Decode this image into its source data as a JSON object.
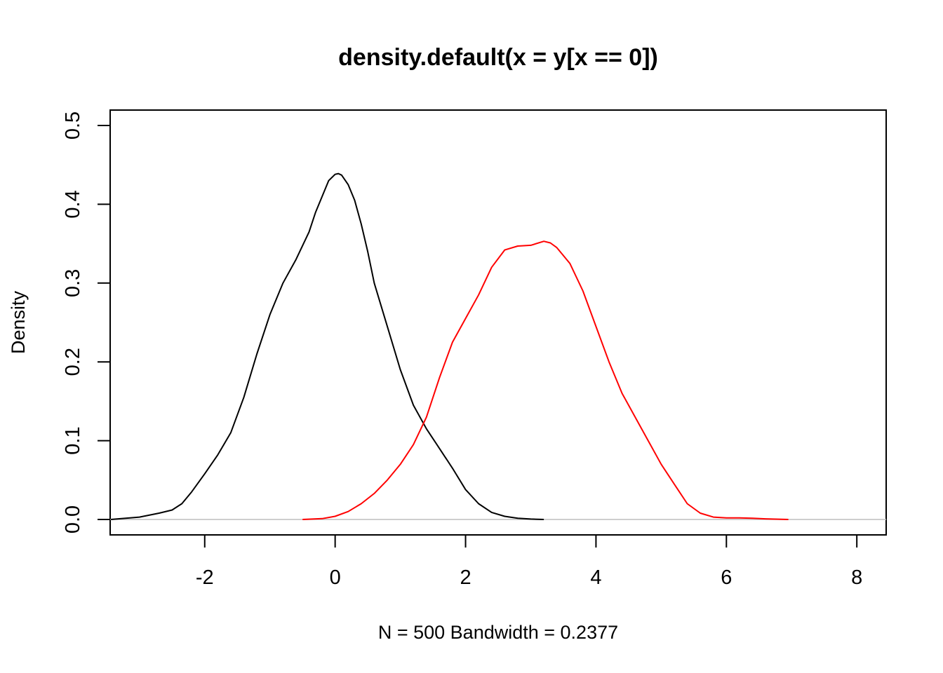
{
  "chart_data": {
    "type": "line",
    "title": "density.default(x = y[x == 0])",
    "xlabel": "N = 500   Bandwidth = 0.2377",
    "ylabel": "Density",
    "xlim": [
      -3.45,
      8.45
    ],
    "ylim": [
      -0.0196,
      0.5196
    ],
    "x_ticks": [
      -2,
      0,
      2,
      4,
      6,
      8
    ],
    "x_tick_labels": [
      "-2",
      "0",
      "2",
      "4",
      "6",
      "8"
    ],
    "y_ticks": [
      0.0,
      0.1,
      0.2,
      0.3,
      0.4,
      0.5
    ],
    "y_tick_labels": [
      "0.0",
      "0.1",
      "0.2",
      "0.3",
      "0.4",
      "0.5"
    ],
    "baseline": {
      "y": 0,
      "color": "#bebebe"
    },
    "grid": false,
    "series": [
      {
        "color": "#000000",
        "x": [
          -3.44,
          -3.0,
          -2.7,
          -2.5,
          -2.35,
          -2.2,
          -2.0,
          -1.8,
          -1.6,
          -1.4,
          -1.2,
          -1.0,
          -0.8,
          -0.6,
          -0.4,
          -0.3,
          -0.2,
          -0.1,
          0.0,
          0.05,
          0.1,
          0.2,
          0.3,
          0.4,
          0.5,
          0.6,
          0.8,
          1.0,
          1.2,
          1.4,
          1.6,
          1.8,
          2.0,
          2.2,
          2.4,
          2.6,
          2.8,
          3.0,
          3.2
        ],
        "y": [
          0.0,
          0.003,
          0.008,
          0.012,
          0.02,
          0.035,
          0.058,
          0.082,
          0.11,
          0.155,
          0.21,
          0.26,
          0.3,
          0.33,
          0.365,
          0.39,
          0.41,
          0.43,
          0.438,
          0.439,
          0.437,
          0.425,
          0.405,
          0.375,
          0.34,
          0.3,
          0.245,
          0.19,
          0.145,
          0.115,
          0.09,
          0.065,
          0.038,
          0.02,
          0.009,
          0.004,
          0.0015,
          0.0005,
          0.0
        ]
      },
      {
        "color": "#ff0000",
        "x": [
          -0.5,
          -0.2,
          0.0,
          0.2,
          0.4,
          0.6,
          0.8,
          1.0,
          1.2,
          1.4,
          1.6,
          1.8,
          2.0,
          2.2,
          2.4,
          2.6,
          2.8,
          3.0,
          3.2,
          3.3,
          3.4,
          3.6,
          3.8,
          4.0,
          4.2,
          4.4,
          4.6,
          4.8,
          5.0,
          5.2,
          5.4,
          5.6,
          5.8,
          6.0,
          6.2,
          6.4,
          6.6,
          6.8,
          6.95
        ],
        "y": [
          0.0,
          0.001,
          0.004,
          0.01,
          0.02,
          0.033,
          0.05,
          0.07,
          0.095,
          0.13,
          0.18,
          0.225,
          0.255,
          0.285,
          0.32,
          0.342,
          0.347,
          0.348,
          0.353,
          0.351,
          0.345,
          0.325,
          0.29,
          0.245,
          0.2,
          0.16,
          0.13,
          0.1,
          0.07,
          0.045,
          0.02,
          0.008,
          0.003,
          0.002,
          0.002,
          0.0015,
          0.0008,
          0.0003,
          0.0
        ]
      }
    ]
  }
}
